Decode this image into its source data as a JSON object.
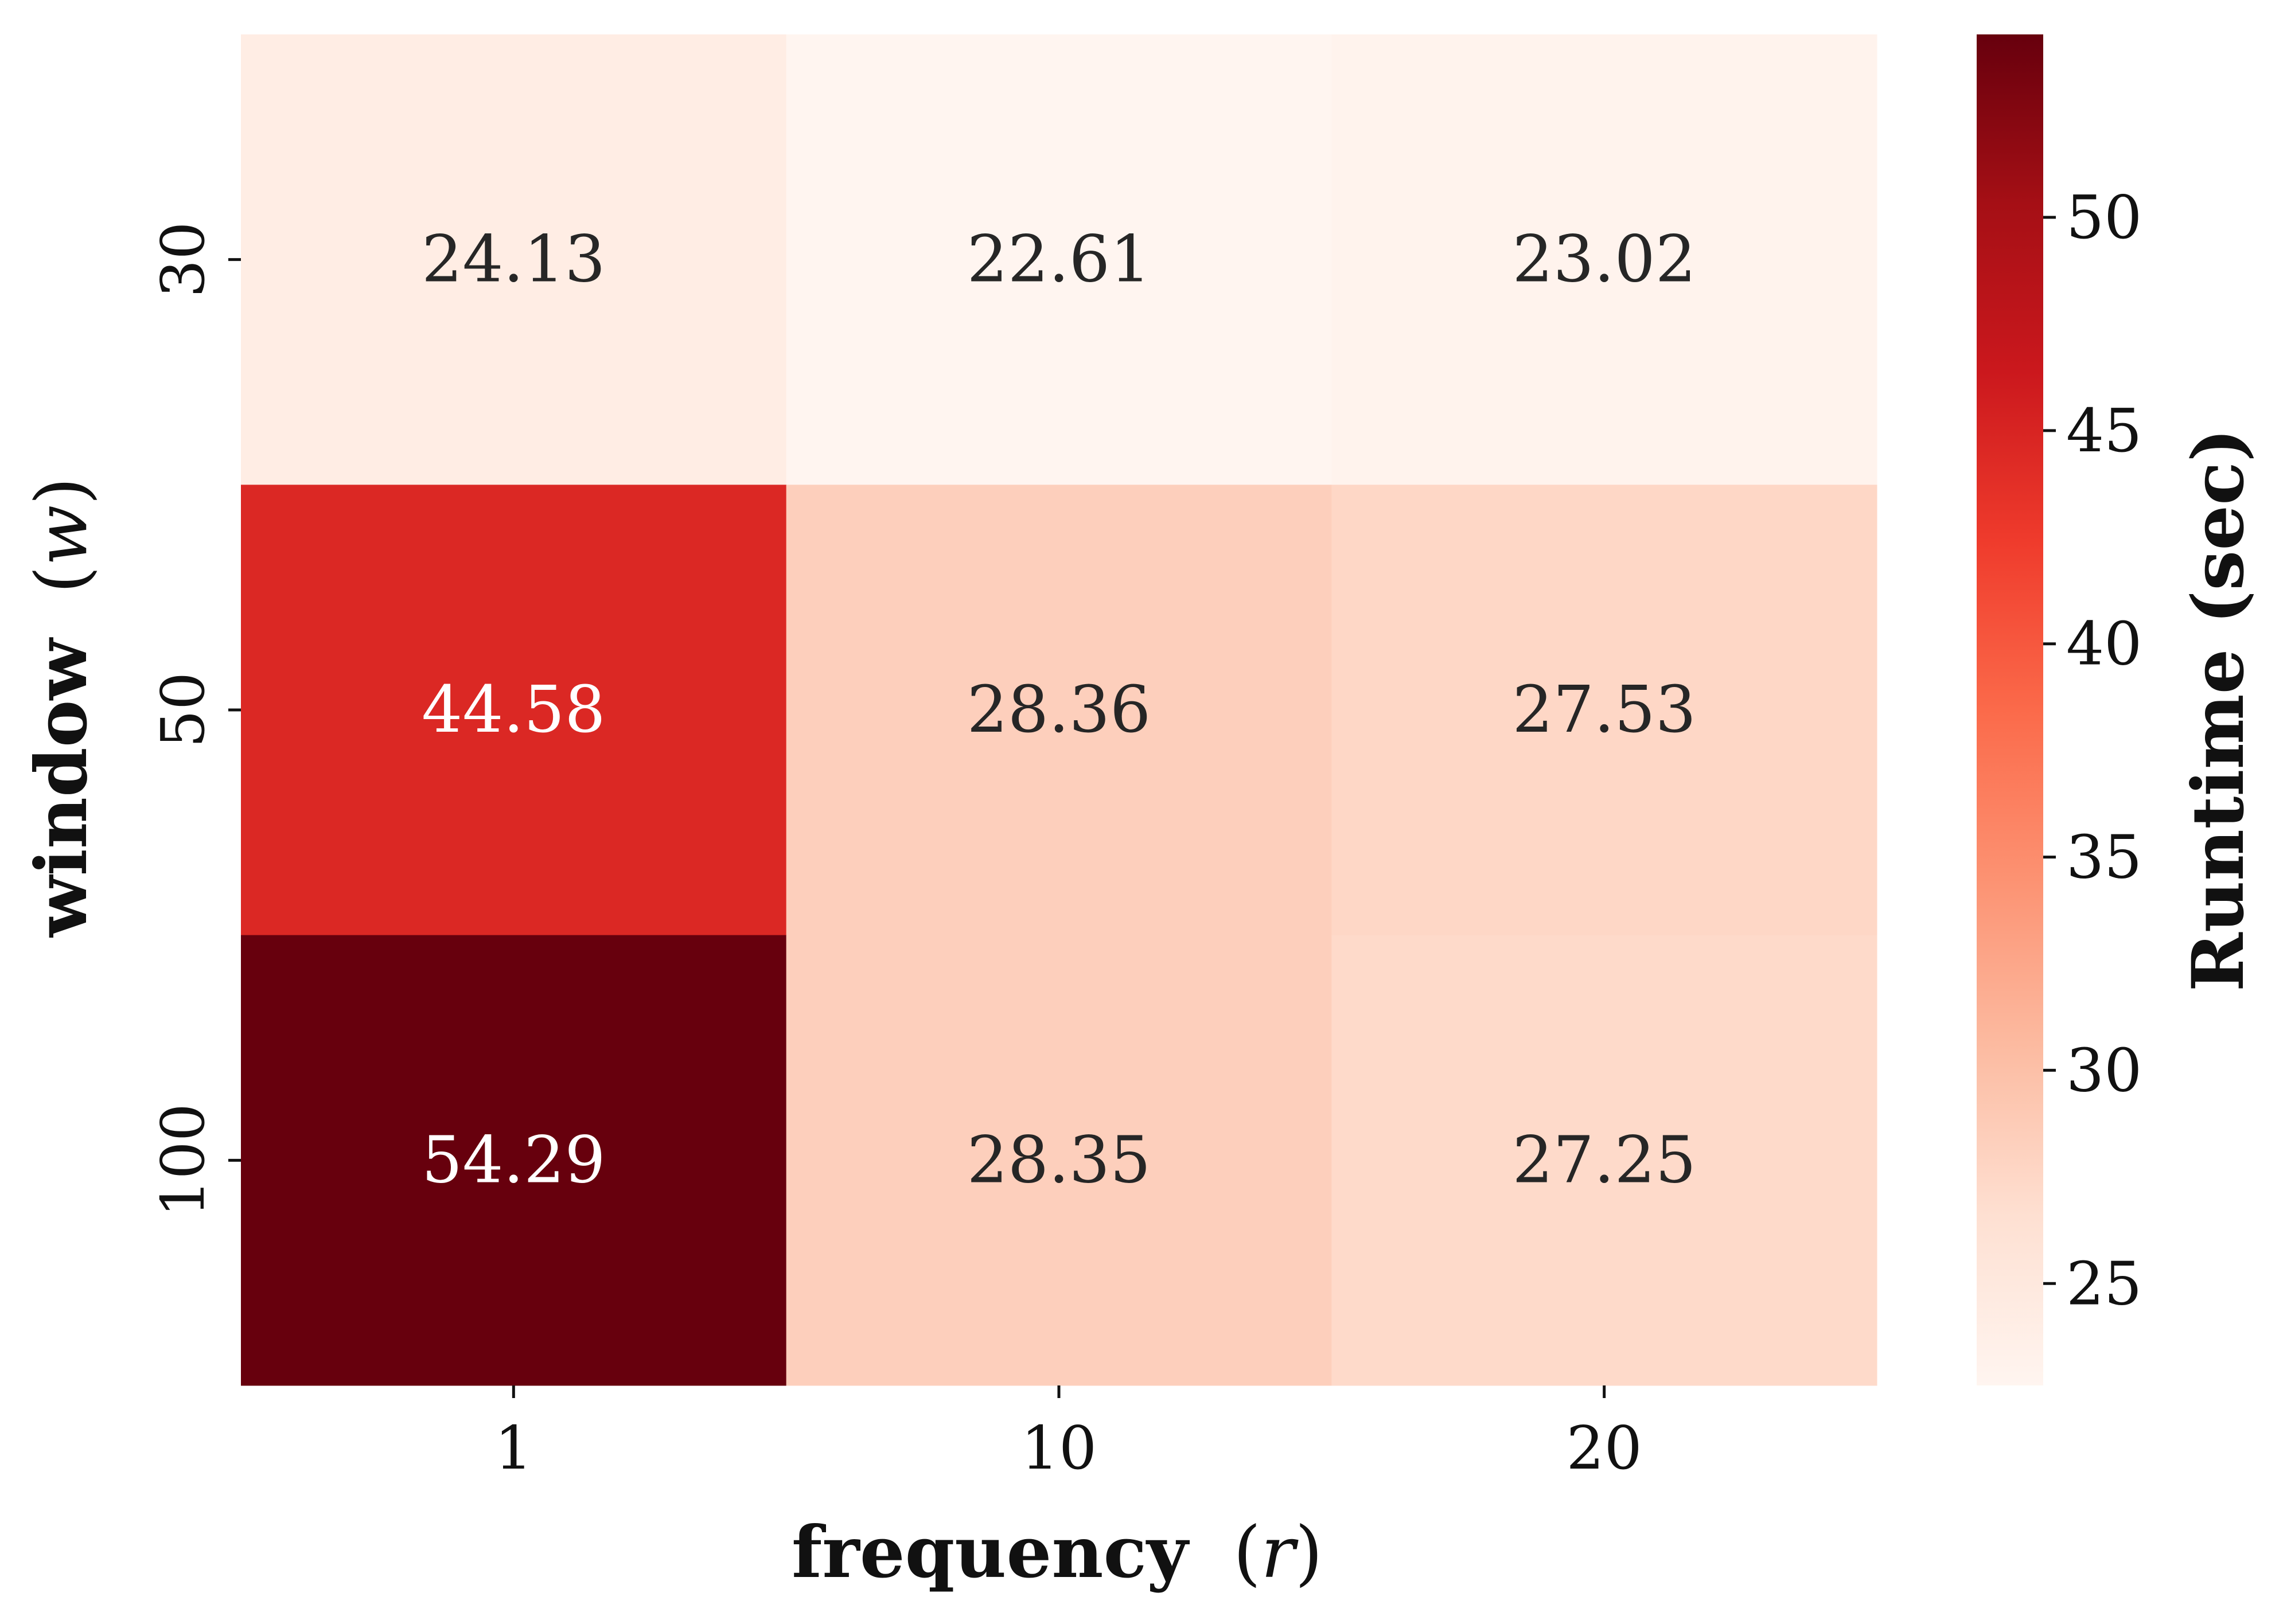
{
  "chart_data": {
    "type": "heatmap",
    "title": "",
    "xlabel": {
      "word": "frequency",
      "symbol": "r"
    },
    "ylabel": {
      "word": "window",
      "symbol": "w"
    },
    "x_categories": [
      "1",
      "10",
      "20"
    ],
    "y_categories": [
      "30",
      "50",
      "100"
    ],
    "values": [
      [
        24.13,
        22.61,
        23.02
      ],
      [
        44.58,
        28.36,
        27.53
      ],
      [
        54.29,
        28.35,
        27.25
      ]
    ],
    "value_labels": [
      [
        "24.13",
        "22.61",
        "23.02"
      ],
      [
        "44.58",
        "28.36",
        "27.53"
      ],
      [
        "54.29",
        "28.35",
        "27.25"
      ]
    ],
    "colorbar": {
      "label": "Runtime (sec)",
      "min": 22.61,
      "max": 54.29,
      "ticks": [
        25,
        30,
        35,
        40,
        45,
        50
      ],
      "tick_labels": [
        "25",
        "30",
        "35",
        "40",
        "45",
        "50"
      ],
      "colormap": "Reds",
      "colormap_stops": [
        "#fff5f0",
        "#fee0d2",
        "#fcbba1",
        "#fc9272",
        "#fb6a4a",
        "#ef3b2c",
        "#cb181d",
        "#a50f15",
        "#67000d"
      ]
    },
    "grid": false,
    "legend": "colorbar-right"
  }
}
